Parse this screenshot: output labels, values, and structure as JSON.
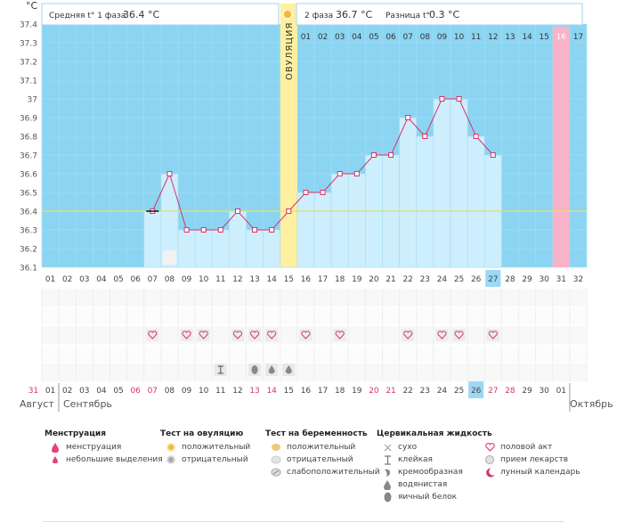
{
  "header": {
    "unit": "°C",
    "phase1_label": "Средняя t° 1 фаза",
    "phase1_value": "36.4 °C",
    "phase2_label": "2 фаза",
    "phase2_value": "36.7 °C",
    "diff_label": "Разница t°",
    "diff_value": "0.3 °C",
    "ovulation_label": "ОВУЛЯЦИЯ"
  },
  "chart_data": {
    "type": "line",
    "title": "",
    "xlabel": "",
    "ylabel": "°C",
    "ylim": [
      36.1,
      37.4
    ],
    "y_ticks": [
      "36.1",
      "36.2",
      "36.3",
      "36.4",
      "36.5",
      "36.6",
      "36.7",
      "36.8",
      "36.9",
      "37",
      "37.1",
      "37.2",
      "37.3",
      "37.4"
    ],
    "cycle_days": [
      "01",
      "02",
      "03",
      "04",
      "05",
      "06",
      "07",
      "08",
      "09",
      "10",
      "11",
      "12",
      "13",
      "14",
      "15",
      "16",
      "17",
      "18",
      "19",
      "20",
      "21",
      "22",
      "23",
      "24",
      "25",
      "26",
      "27",
      "28",
      "29",
      "30",
      "31",
      "32"
    ],
    "series": [
      {
        "values": [
          null,
          null,
          null,
          null,
          null,
          null,
          36.4,
          36.6,
          36.3,
          36.3,
          36.3,
          36.4,
          36.3,
          36.3,
          36.4,
          36.5,
          36.5,
          36.6,
          36.6,
          36.7,
          36.7,
          36.9,
          36.8,
          37.0,
          37.0,
          36.8,
          36.7,
          null,
          null,
          null,
          null,
          null
        ]
      }
    ],
    "coverline": 36.4,
    "ovulation_day": 15,
    "today_cycle_day": "27",
    "phase2_days": [
      "01",
      "02",
      "03",
      "04",
      "05",
      "06",
      "07",
      "08",
      "09",
      "10",
      "11",
      "12",
      "13",
      "14",
      "15",
      "16",
      "17"
    ],
    "phase2_highlight": "16",
    "sex_days": [
      7,
      9,
      10,
      12,
      13,
      14,
      16,
      18,
      22,
      24,
      25,
      27
    ],
    "moon_day": 8,
    "fluid": [
      {
        "day": 11,
        "kind": "sticky"
      },
      {
        "day": 13,
        "kind": "egg-white"
      },
      {
        "day": 14,
        "kind": "watery"
      },
      {
        "day": 15,
        "kind": "watery"
      }
    ],
    "dates": [
      "31",
      "01",
      "02",
      "03",
      "04",
      "05",
      "06",
      "07",
      "08",
      "09",
      "10",
      "11",
      "12",
      "13",
      "14",
      "15",
      "16",
      "17",
      "18",
      "19",
      "20",
      "21",
      "22",
      "23",
      "24",
      "25",
      "26",
      "27",
      "28",
      "29",
      "30",
      "01"
    ],
    "date_red": [
      0,
      6,
      7,
      13,
      14,
      20,
      21,
      27,
      28
    ],
    "today_date": "26",
    "months": [
      "Август",
      "Сентябрь",
      "Октябрь"
    ]
  },
  "colors": {
    "sky": "#8cd5f2",
    "bar": "#cdeefc",
    "bar_edge": "#a9dcf3",
    "ovulation": "#fff0a0",
    "pink_column": "#f8b3c8",
    "line": "#d6336c",
    "coverline": "#e8e060",
    "red_text": "#d6336c",
    "today": "#9dd8f5"
  },
  "legend": {
    "menstruation": {
      "title": "Менструация",
      "items": [
        "менструация",
        "небольшие выделения"
      ]
    },
    "ovulation_test": {
      "title": "Тест на овуляцию",
      "items": [
        "положительный",
        "отрицательный"
      ]
    },
    "pregnancy_test": {
      "title": "Тест на беременность",
      "items": [
        "положительный",
        "отрицательный",
        "слабоположительный"
      ]
    },
    "cervical": {
      "title": "Цервикальная жидкость",
      "items": [
        "сухо",
        "клейкая",
        "кремообразная",
        "водянистая",
        "яичный белок"
      ]
    },
    "other": {
      "items": [
        "половой акт",
        "прием лекарств",
        "лунный календарь"
      ]
    }
  }
}
